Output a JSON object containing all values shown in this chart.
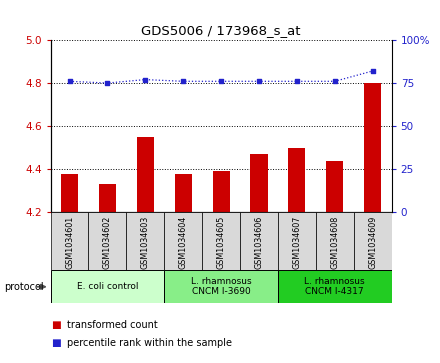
{
  "title": "GDS5006 / 173968_s_at",
  "samples": [
    "GSM1034601",
    "GSM1034602",
    "GSM1034603",
    "GSM1034604",
    "GSM1034605",
    "GSM1034606",
    "GSM1034607",
    "GSM1034608",
    "GSM1034609"
  ],
  "bar_values": [
    4.38,
    4.33,
    4.55,
    4.38,
    4.39,
    4.47,
    4.5,
    4.44,
    4.8
  ],
  "dot_values": [
    76,
    75,
    77,
    76,
    76,
    76,
    76,
    76,
    82
  ],
  "bar_color": "#cc0000",
  "dot_color": "#2222cc",
  "ylim_left": [
    4.2,
    5.0
  ],
  "ylim_right": [
    0,
    100
  ],
  "yticks_left": [
    4.2,
    4.4,
    4.6,
    4.8,
    5.0
  ],
  "yticks_right": [
    0,
    25,
    50,
    75,
    100
  ],
  "groups": [
    {
      "label": "E. coli control",
      "start": 0,
      "end": 3,
      "color": "#ccffcc"
    },
    {
      "label": "L. rhamnosus\nCNCM I-3690",
      "start": 3,
      "end": 6,
      "color": "#88ee88"
    },
    {
      "label": "L. rhamnosus\nCNCM I-4317",
      "start": 6,
      "end": 9,
      "color": "#22cc22"
    }
  ],
  "legend_bar_label": "transformed count",
  "legend_dot_label": "percentile rank within the sample",
  "protocol_label": "protocol",
  "background_color": "#ffffff",
  "plot_bg_color": "#ffffff",
  "label_box_color": "#d9d9d9",
  "bar_width": 0.45
}
